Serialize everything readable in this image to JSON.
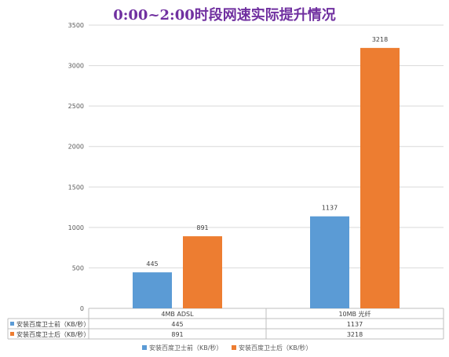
{
  "chart_data": {
    "type": "bar",
    "title": "0:00~2:00时段网速实际提升情况",
    "categories": [
      "4MB ADSL",
      "10MB 光纤"
    ],
    "series": [
      {
        "name": "安装百度卫士前（KB/秒）",
        "values": [
          445,
          1137
        ],
        "color": "#5b9bd5"
      },
      {
        "name": "安装百度卫士后（KB/秒）",
        "values": [
          891,
          3218
        ],
        "color": "#ed7d31"
      }
    ],
    "ylim": [
      0,
      3500
    ],
    "yticks": [
      0,
      500,
      1000,
      1500,
      2000,
      2500,
      3000,
      3500
    ],
    "grid": true,
    "legend": "bottom",
    "data_table": true
  }
}
